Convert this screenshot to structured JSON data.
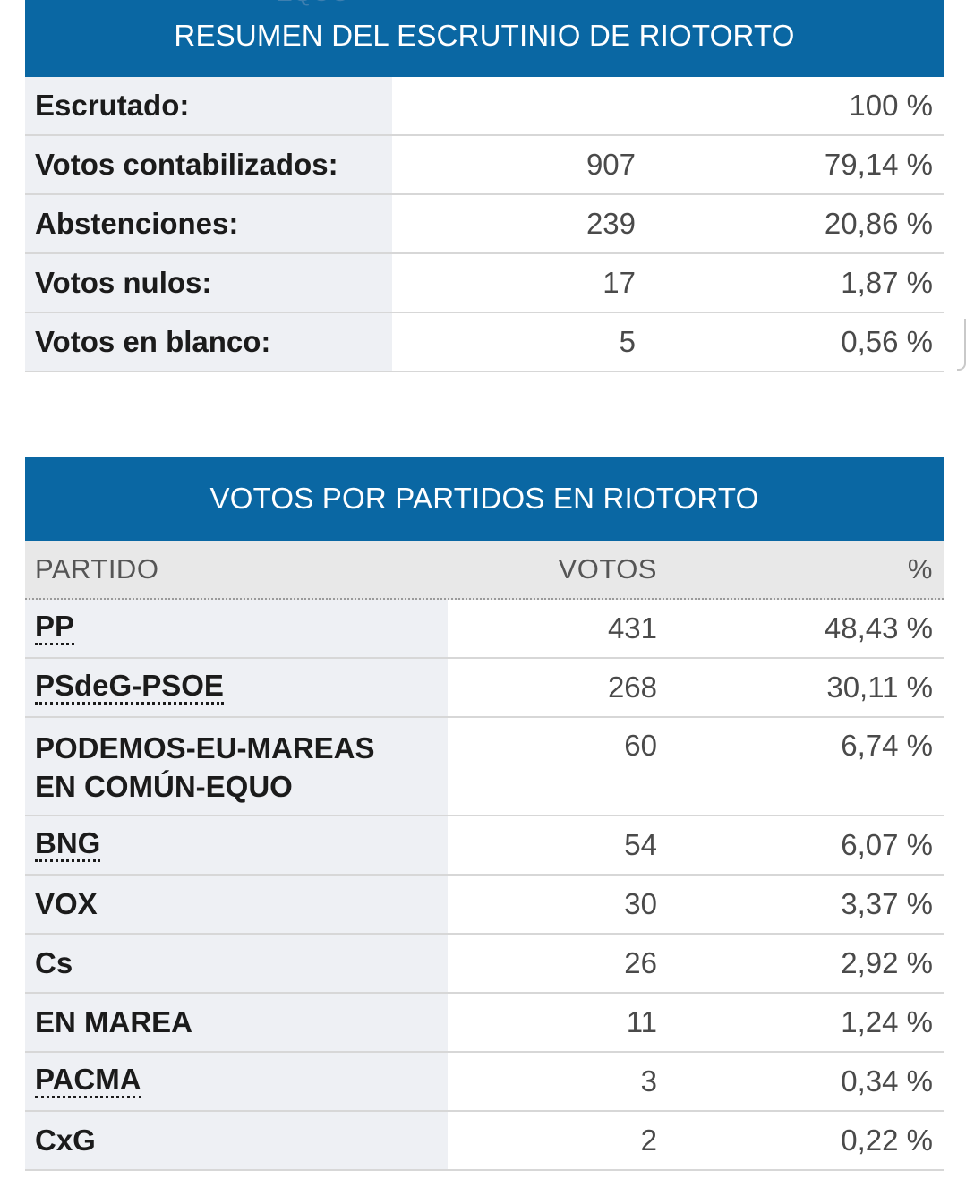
{
  "summary": {
    "ghost_text": "EQUO",
    "title": "RESUMEN DEL ESCRUTINIO DE RIOTORTO",
    "rows": [
      {
        "label": "Escrutado:",
        "value": "",
        "pct": "100 %"
      },
      {
        "label": "Votos contabilizados:",
        "value": "907",
        "pct": "79,14 %"
      },
      {
        "label": "Abstenciones:",
        "value": "239",
        "pct": "20,86 %"
      },
      {
        "label": "Votos nulos:",
        "value": "17",
        "pct": "1,87 %"
      },
      {
        "label": "Votos en blanco:",
        "value": "5",
        "pct": "0,56 %"
      }
    ]
  },
  "parties": {
    "title": "VOTOS POR PARTIDOS EN RIOTORTO",
    "columns": {
      "party": "PARTIDO",
      "votes": "VOTOS",
      "pct": "%"
    },
    "rows": [
      {
        "party": "PP",
        "votes": "431",
        "pct": "48,43 %"
      },
      {
        "party": "PSdeG-PSOE",
        "votes": "268",
        "pct": "30,11 %"
      },
      {
        "party": "PODEMOS-EU-MAREAS",
        "party_line2": "EN COMÚN-EQUO",
        "votes": "60",
        "pct": "6,74 %"
      },
      {
        "party": "BNG",
        "votes": "54",
        "pct": "6,07 %"
      },
      {
        "party": "VOX",
        "votes": "30",
        "pct": "3,37 %"
      },
      {
        "party": "Cs",
        "votes": "26",
        "pct": "2,92 %"
      },
      {
        "party": "EN MAREA",
        "votes": "11",
        "pct": "1,24 %"
      },
      {
        "party": "PACMA",
        "votes": "3",
        "pct": "0,34 %"
      },
      {
        "party": "CxG",
        "votes": "2",
        "pct": "0,22 %"
      }
    ]
  }
}
